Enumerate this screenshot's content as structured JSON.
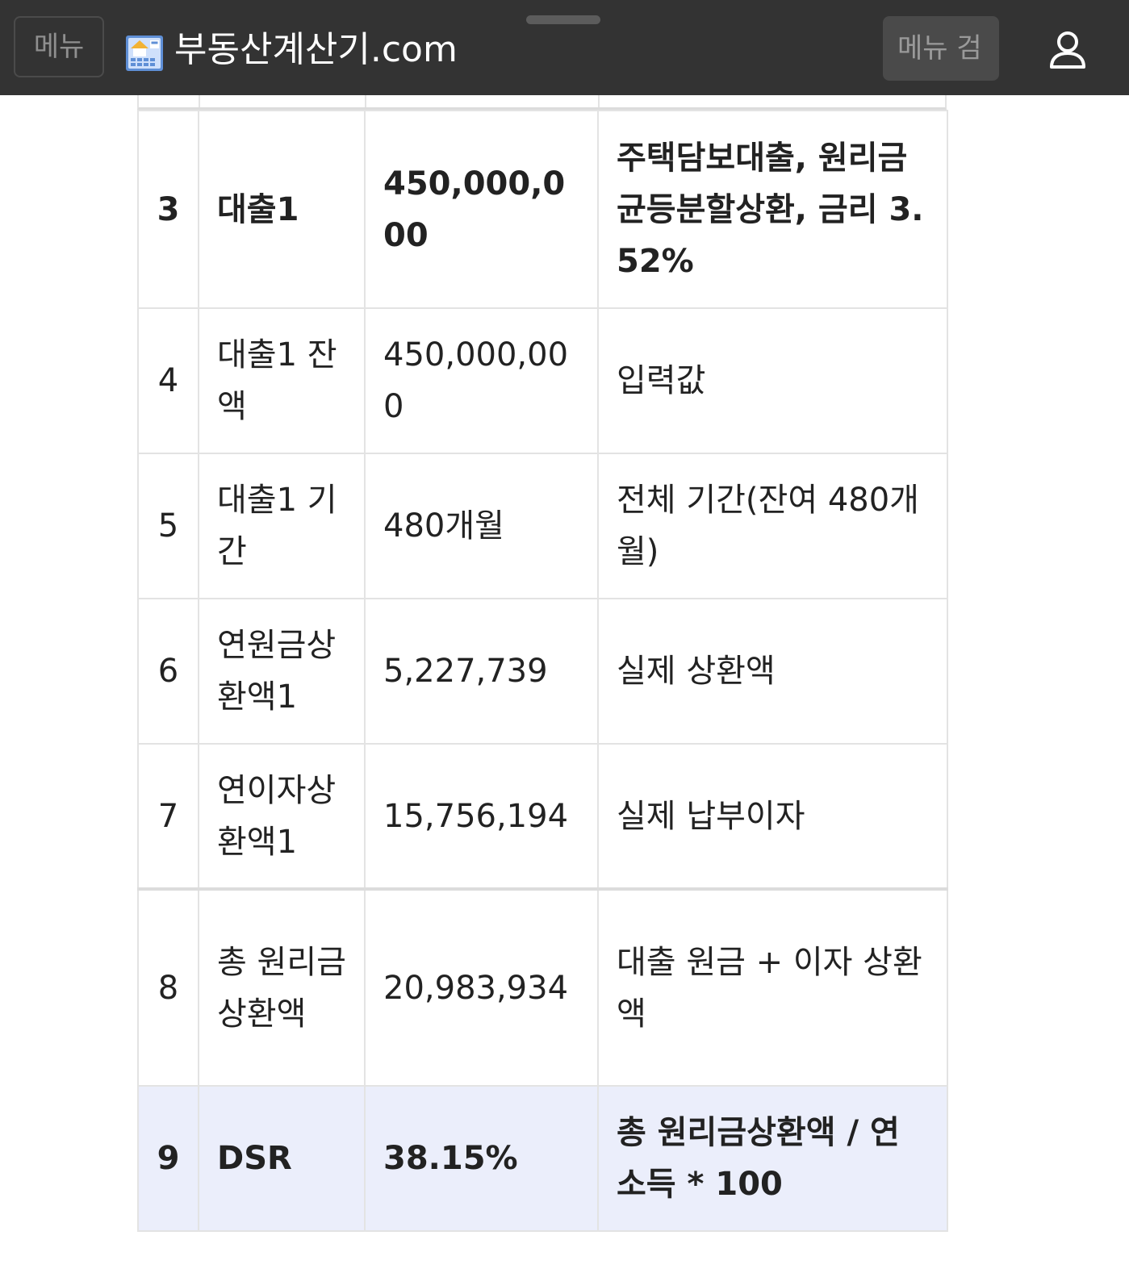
{
  "topbar": {
    "menu_left_label": "메뉴",
    "logo_icon": "building-calculator-icon",
    "site_title": "부동산계산기.com",
    "menu_right_label": "메뉴 검",
    "user_icon": "user-icon"
  },
  "table": {
    "rows": [
      {
        "num": "3",
        "item": "대출1",
        "value": "450,000,000",
        "desc": "주택담보대출, 원리금균등분할상환, 금리 3.52%"
      },
      {
        "num": "4",
        "item": "대출1 잔액",
        "value": "450,000,000",
        "desc": "입력값"
      },
      {
        "num": "5",
        "item": "대출1 기간",
        "value": "480개월",
        "desc": "전체 기간(잔여 480개월)"
      },
      {
        "num": "6",
        "item": "연원금상환액1",
        "value": "5,227,739",
        "desc": "실제 상환액"
      },
      {
        "num": "7",
        "item": "연이자상환액1",
        "value": "15,756,194",
        "desc": "실제 납부이자"
      },
      {
        "num": "8",
        "item": "총 원리금상환액",
        "value": "20,983,934",
        "desc": "대출 원금 + 이자 상환액"
      },
      {
        "num": "9",
        "item": "DSR",
        "value": "38.15%",
        "desc": "총 원리금상환액 / 연소득 * 100"
      }
    ]
  },
  "colors": {
    "topbar_bg": "#333333",
    "highlight_row_bg": "#ebeefb",
    "table_border": "#e3e3e3"
  }
}
